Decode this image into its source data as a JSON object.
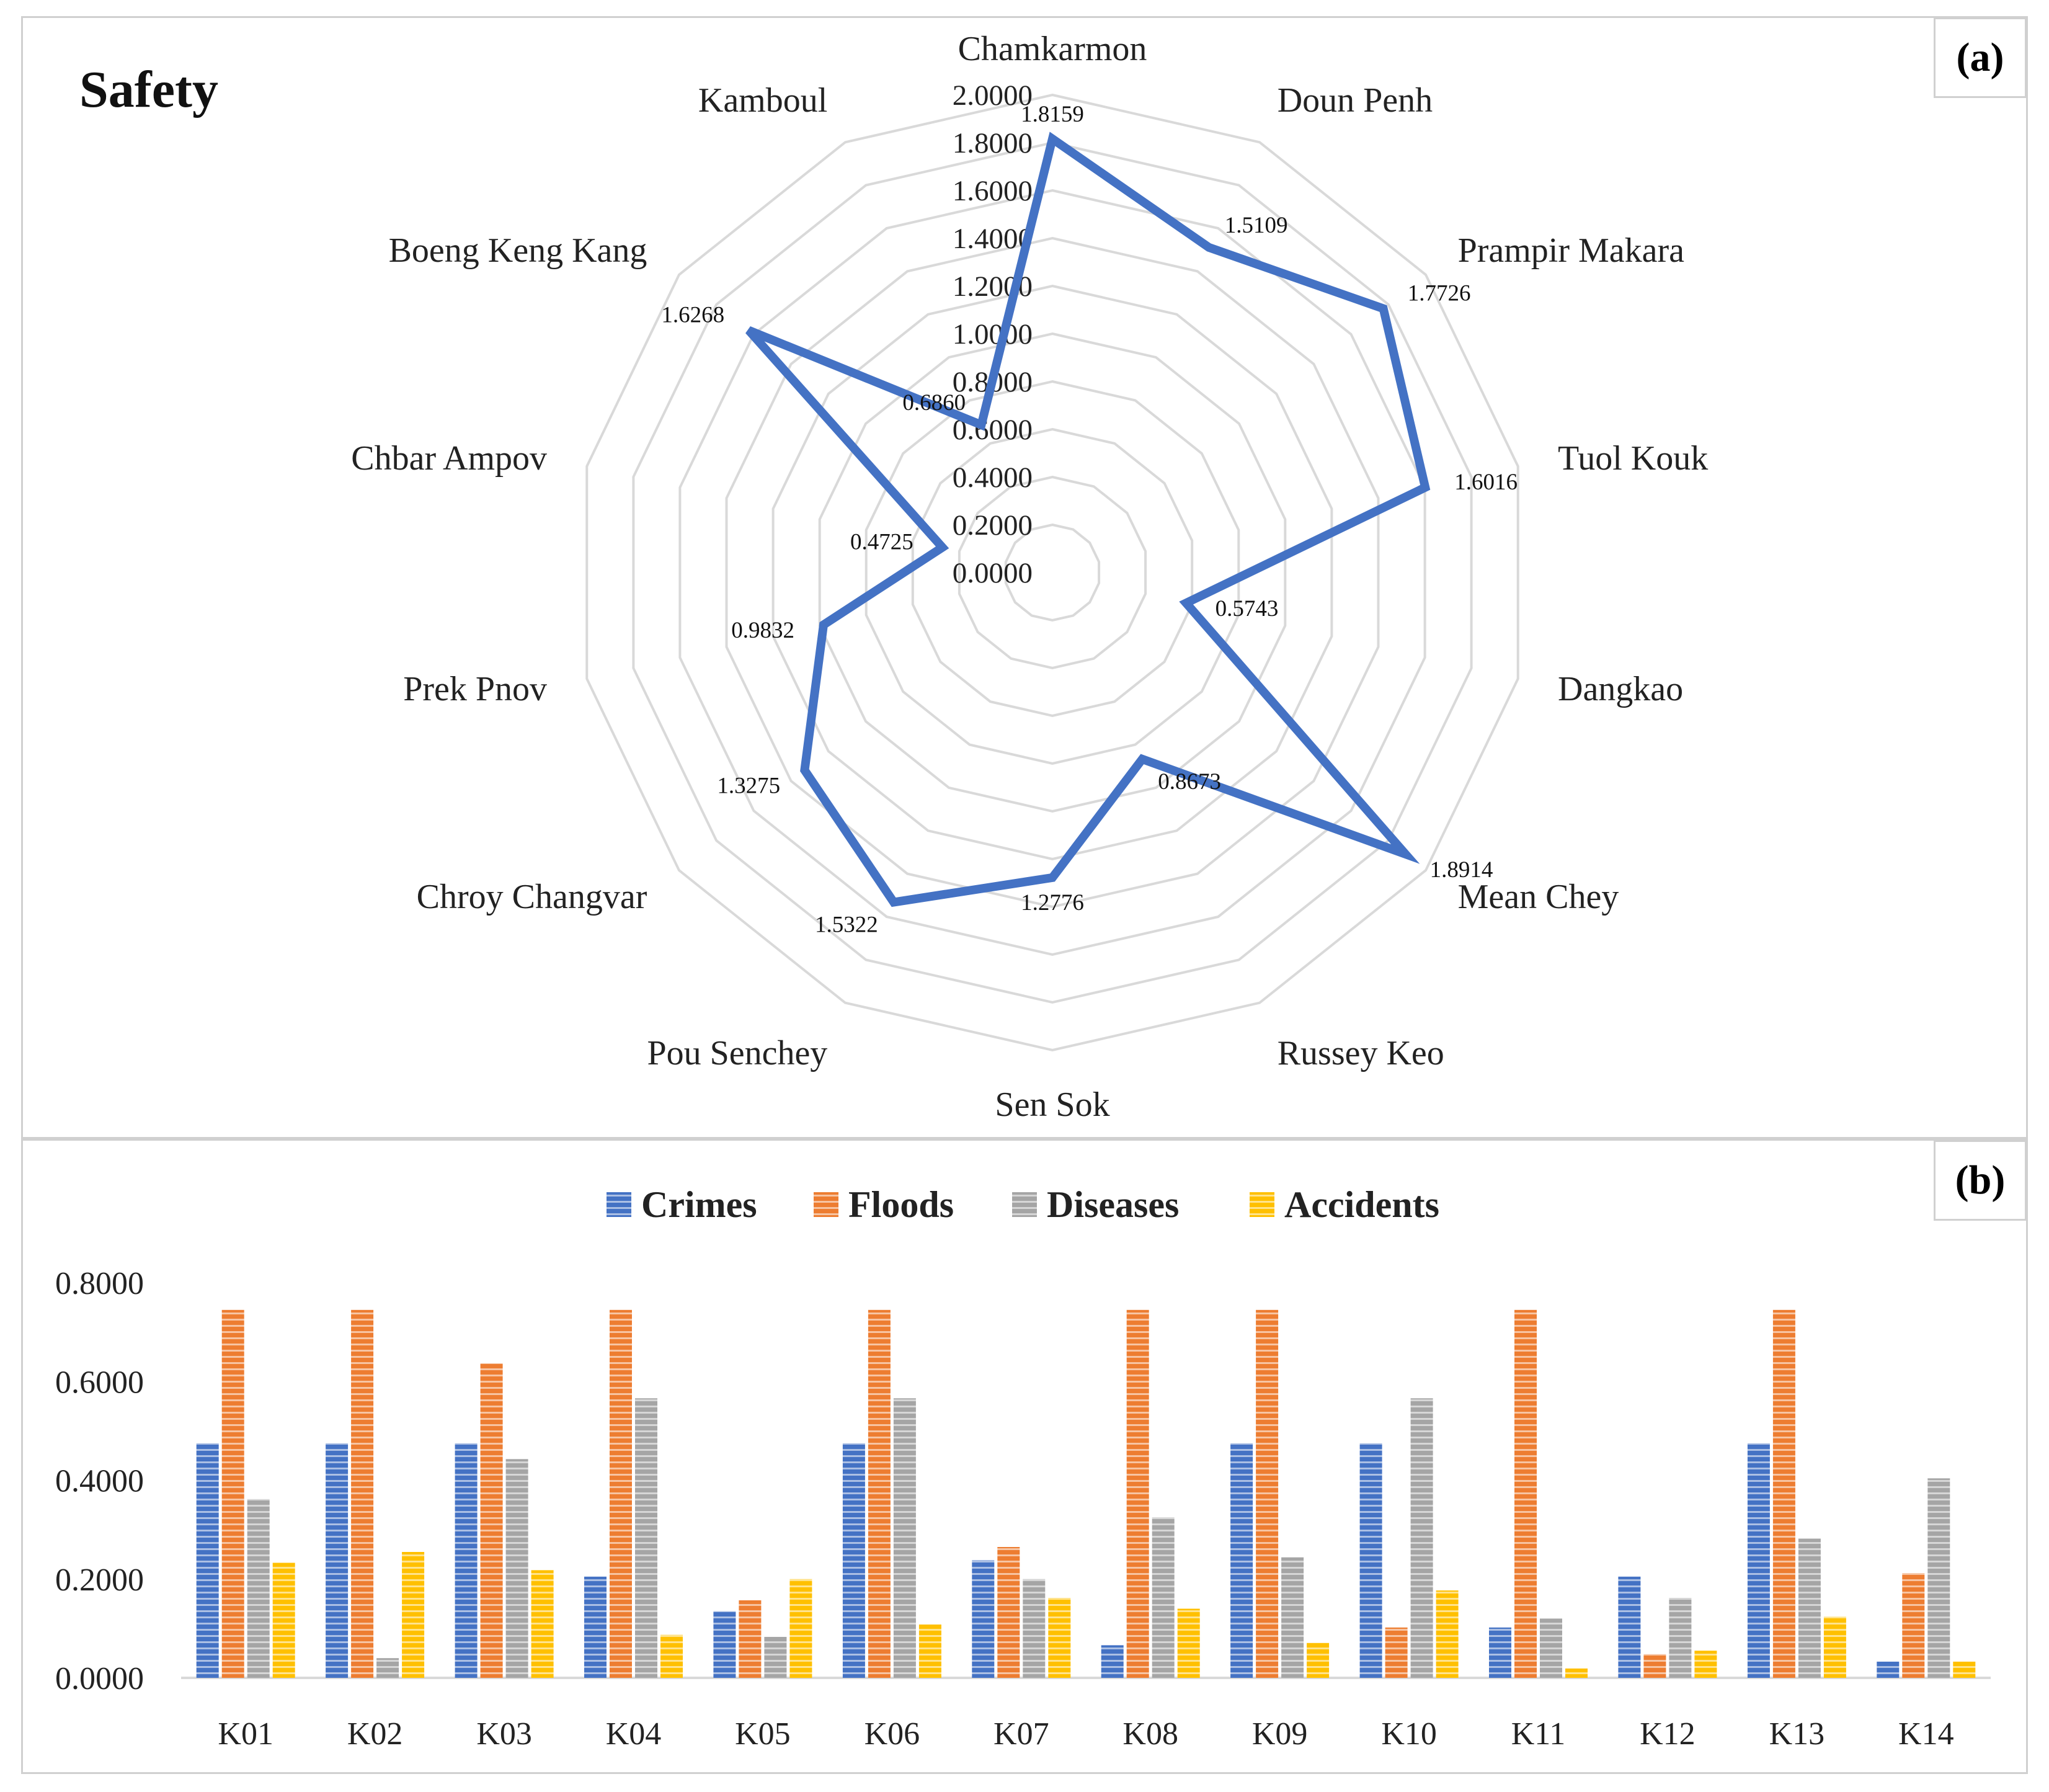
{
  "panel_a": {
    "tag": "(a)",
    "title": "Safety"
  },
  "panel_b": {
    "tag": "(b)"
  },
  "colors": {
    "radar_line": "#4472C4",
    "grid": "#d9d9d9",
    "crimes": "#4472C4",
    "floods": "#ED7D31",
    "diseases": "#A5A5A5",
    "accidents": "#FFC000"
  },
  "chart_data": [
    {
      "type": "radar",
      "title": "Safety",
      "categories": [
        "Chamkarmon",
        "Doun Penh",
        "Prampir Makara",
        "Tuol Kouk",
        "Dangkao",
        "Mean Chey",
        "Russey Keo",
        "Sen Sok",
        "Pou Senchey",
        "Chroy Changvar",
        "Prek Pnov",
        "Chbar Ampov",
        "Boeng Keng Kang",
        "Kamboul"
      ],
      "values": [
        1.8159,
        1.5109,
        1.7726,
        1.6016,
        0.5743,
        1.8914,
        0.8673,
        1.2776,
        1.5322,
        1.3275,
        0.9832,
        0.4725,
        1.6268,
        0.686
      ],
      "value_labels": [
        "1.8159",
        "1.5109",
        "1.7726",
        "1.6016",
        "0.5743",
        "1.8914",
        "0.8673",
        "1.2776",
        "1.5322",
        "1.3275",
        "0.9832",
        "0.4725",
        "1.6268",
        "0.6860"
      ],
      "rlim": [
        0,
        2
      ],
      "radial_ticks": [
        "0.0000",
        "0.2000",
        "0.4000",
        "0.6000",
        "0.8000",
        "1.0000",
        "1.2000",
        "1.4000",
        "1.6000",
        "1.8000",
        "2.0000"
      ],
      "grid": true
    },
    {
      "type": "bar",
      "categories": [
        "K01",
        "K02",
        "K03",
        "K04",
        "K05",
        "K06",
        "K07",
        "K08",
        "K09",
        "K10",
        "K11",
        "K12",
        "K13",
        "K14"
      ],
      "series": [
        {
          "name": "Crimes",
          "values": [
            0.475,
            0.475,
            0.475,
            0.205,
            0.135,
            0.475,
            0.238,
            0.066,
            0.475,
            0.475,
            0.102,
            0.205,
            0.475,
            0.033
          ]
        },
        {
          "name": "Floods",
          "values": [
            0.745,
            0.745,
            0.637,
            0.745,
            0.157,
            0.745,
            0.265,
            0.745,
            0.745,
            0.102,
            0.745,
            0.048,
            0.745,
            0.212
          ]
        },
        {
          "name": "Diseases",
          "values": [
            0.362,
            0.04,
            0.443,
            0.566,
            0.083,
            0.566,
            0.2,
            0.325,
            0.244,
            0.566,
            0.12,
            0.162,
            0.282,
            0.404
          ]
        },
        {
          "name": "Accidents",
          "values": [
            0.233,
            0.255,
            0.218,
            0.087,
            0.2,
            0.108,
            0.162,
            0.14,
            0.071,
            0.177,
            0.019,
            0.055,
            0.124,
            0.033
          ]
        }
      ],
      "y_ticks": [
        "0.0000",
        "0.2000",
        "0.4000",
        "0.6000",
        "0.8000"
      ],
      "ylim": [
        0,
        0.8
      ],
      "legend_position": "top-center",
      "grid": false
    }
  ]
}
